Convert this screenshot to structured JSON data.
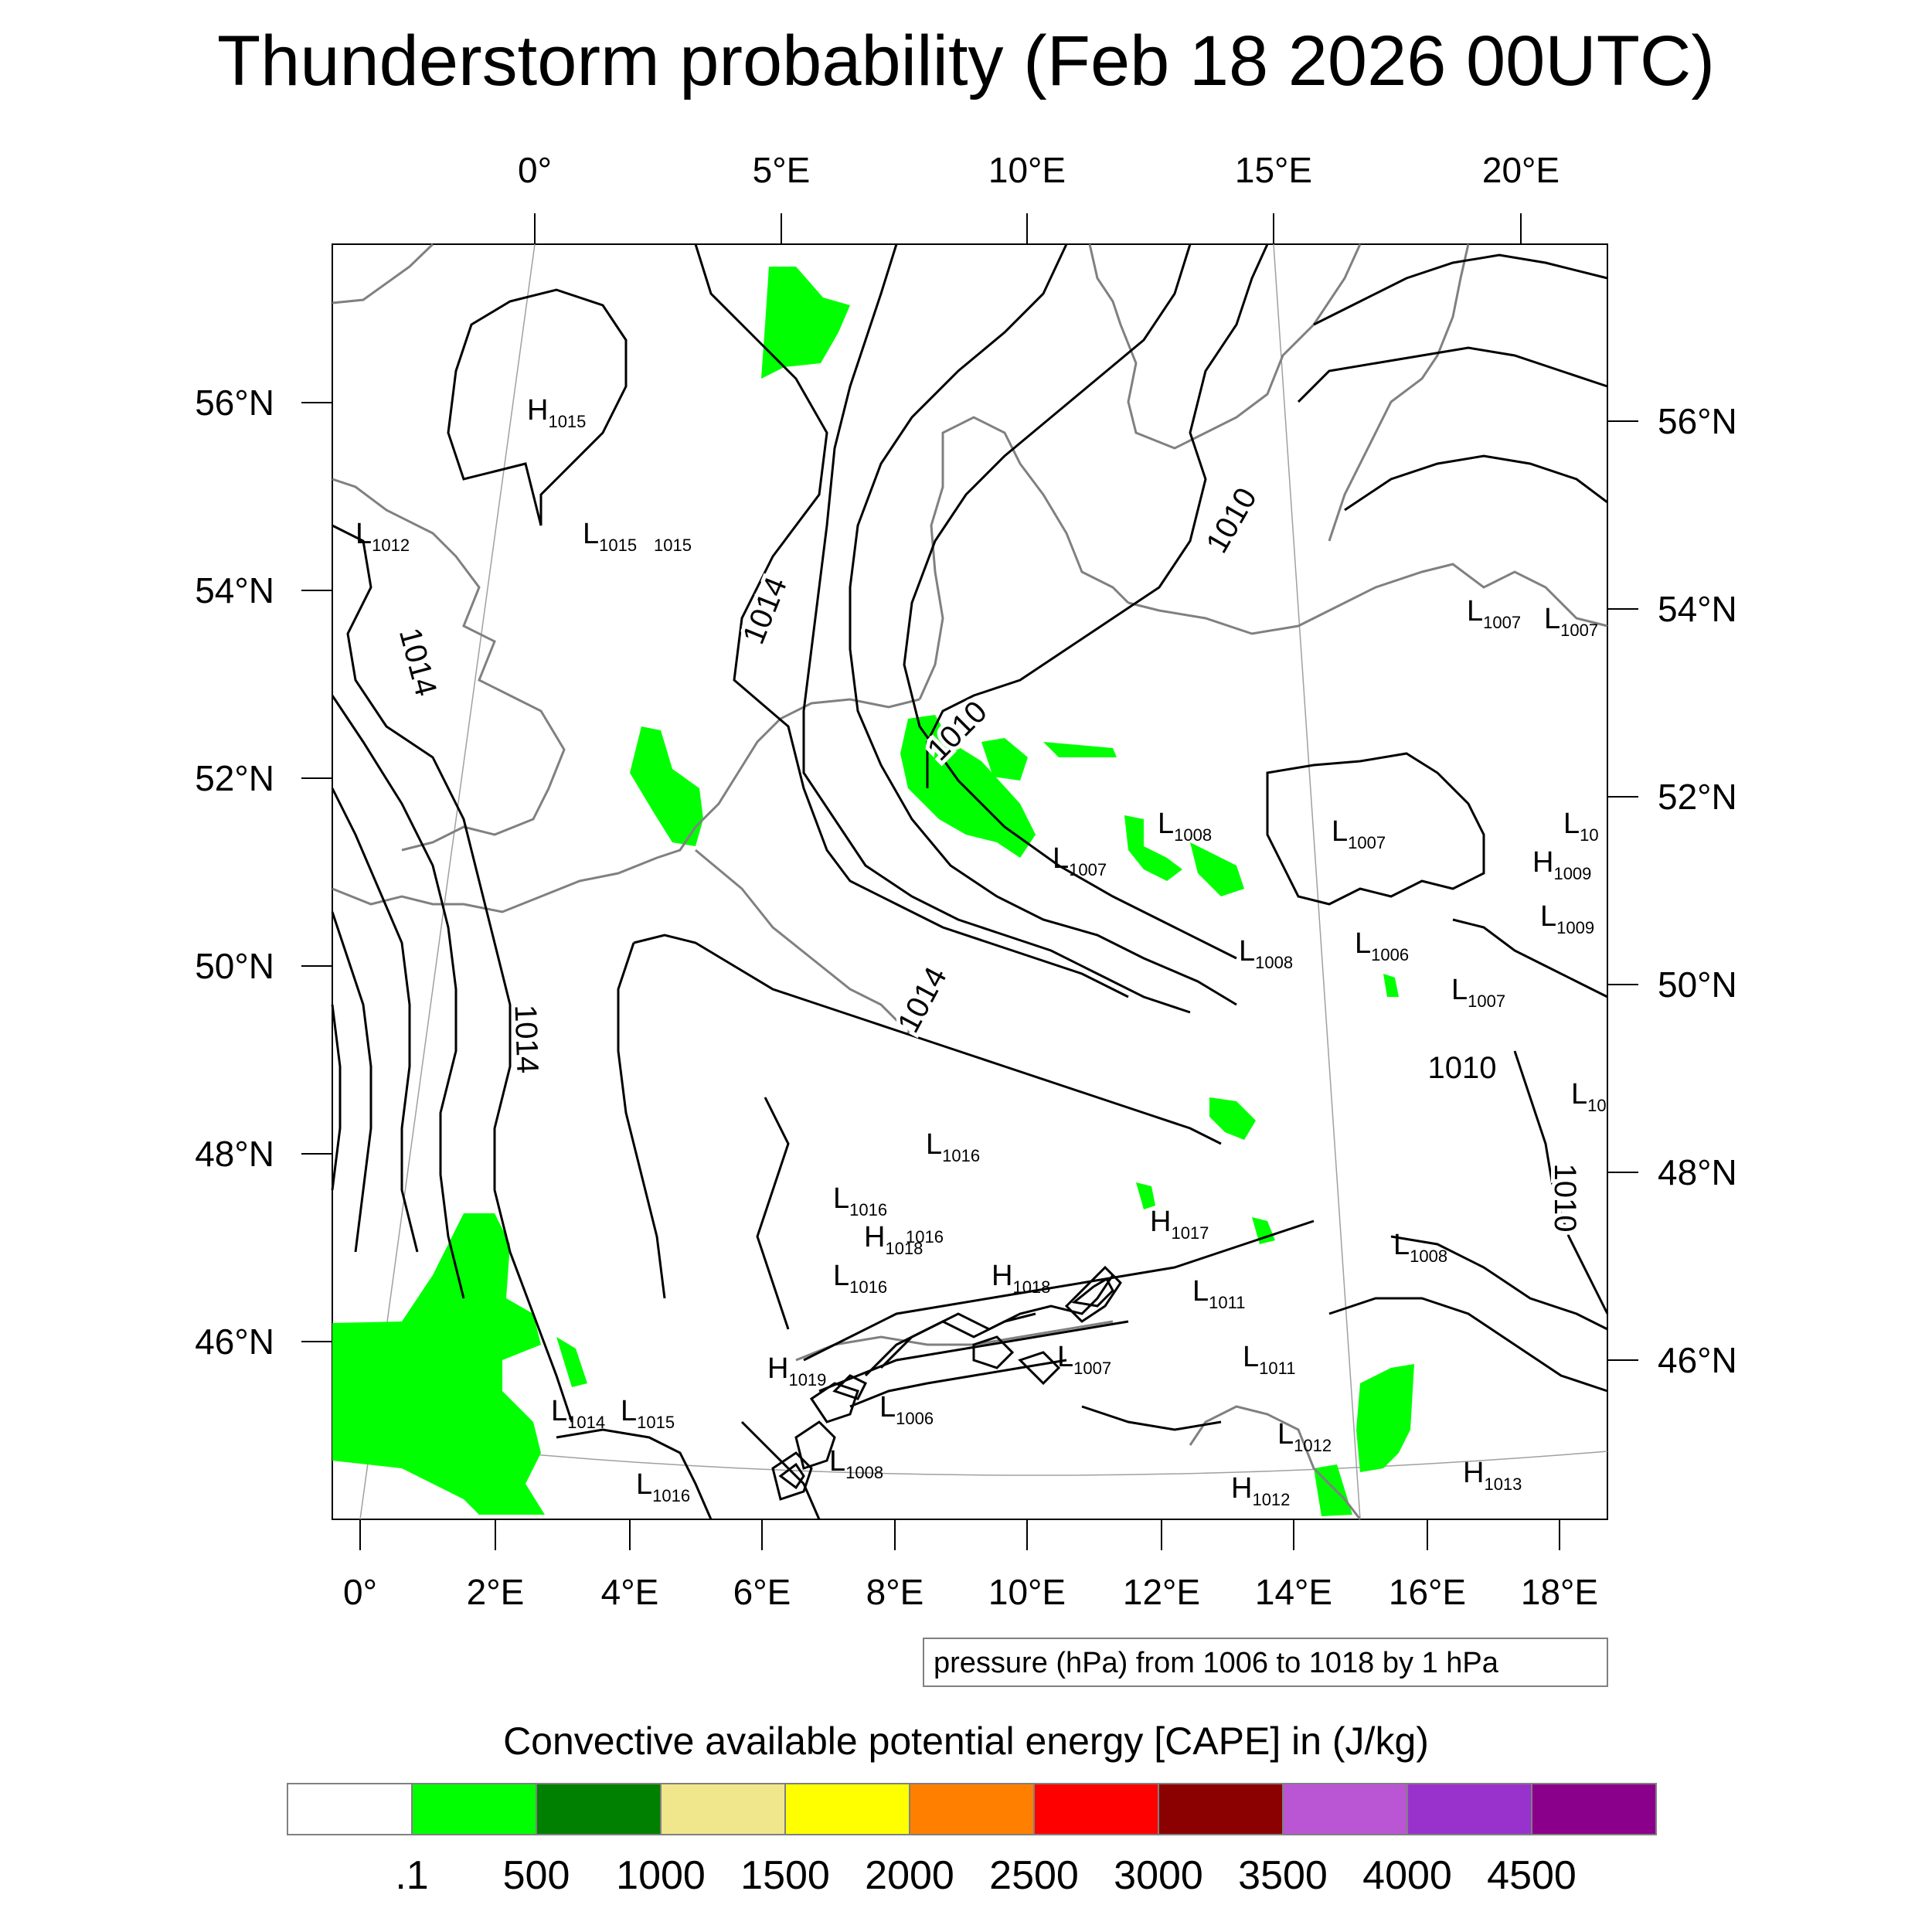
{
  "title": "Thunderstorm probability (Feb 18 2026 00UTC)",
  "top_lon_ticks": [
    "0°",
    "5°E",
    "10°E",
    "15°E",
    "20°E"
  ],
  "bottom_lon_ticks": [
    "0°",
    "2°E",
    "4°E",
    "6°E",
    "8°E",
    "10°E",
    "12°E",
    "14°E",
    "16°E",
    "18°E"
  ],
  "left_lat_ticks": [
    "56°N",
    "54°N",
    "52°N",
    "50°N",
    "48°N",
    "46°N"
  ],
  "right_lat_ticks": [
    "56°N",
    "54°N",
    "52°N",
    "50°N",
    "48°N",
    "46°N"
  ],
  "pressure_centers": [
    {
      "letter": "H",
      "value": "1015"
    },
    {
      "letter": "L",
      "value": "1012"
    },
    {
      "letter": "L",
      "value": "1015"
    },
    {
      "letter": "",
      "value": "1015"
    },
    {
      "letter": "L",
      "value": "1007"
    },
    {
      "letter": "L",
      "value": "1007"
    },
    {
      "letter": "L",
      "value": "1008"
    },
    {
      "letter": "L",
      "value": "1007"
    },
    {
      "letter": "L",
      "value": "1007"
    },
    {
      "letter": "L",
      "value": "10"
    },
    {
      "letter": "H",
      "value": "1009"
    },
    {
      "letter": "L",
      "value": "1009"
    },
    {
      "letter": "L",
      "value": "1008"
    },
    {
      "letter": "L",
      "value": "1006"
    },
    {
      "letter": "L",
      "value": "1007"
    },
    {
      "letter": "L",
      "value": "10"
    },
    {
      "letter": "L",
      "value": "1016"
    },
    {
      "letter": "L",
      "value": "1016"
    },
    {
      "letter": "H",
      "value": "1018"
    },
    {
      "letter": "",
      "value": "1016"
    },
    {
      "letter": "H",
      "value": "1017"
    },
    {
      "letter": "L",
      "value": "1008"
    },
    {
      "letter": "L",
      "value": "1016"
    },
    {
      "letter": "H",
      "value": "1018"
    },
    {
      "letter": "L",
      "value": "1011"
    },
    {
      "letter": "H",
      "value": "1019"
    },
    {
      "letter": "L",
      "value": "1007"
    },
    {
      "letter": "L",
      "value": "1011"
    },
    {
      "letter": "L",
      "value": "1014"
    },
    {
      "letter": "L",
      "value": "1015"
    },
    {
      "letter": "L",
      "value": "1006"
    },
    {
      "letter": "L",
      "value": "1012"
    },
    {
      "letter": "L",
      "value": "1008"
    },
    {
      "letter": "L",
      "value": "1016"
    },
    {
      "letter": "H",
      "value": "1012"
    },
    {
      "letter": "H",
      "value": "1013"
    }
  ],
  "contour_labels": [
    "1014",
    "1014",
    "1014",
    "1014",
    "1010",
    "1010",
    "1010",
    "1010"
  ],
  "pressure_caption": "pressure (hPa) from 1006 to 1018 by 1 hPa",
  "colorbar": {
    "title": "Convective available potential energy [CAPE] in (J/kg)",
    "colors": [
      "#ffffff",
      "#00ff00",
      "#008000",
      "#f0e68c",
      "#ffff00",
      "#ff8000",
      "#ff0000",
      "#8b0000",
      "#ba55d3",
      "#9932cc",
      "#8b008b"
    ],
    "labels": [
      ".1",
      "500",
      "1000",
      "1500",
      "2000",
      "2500",
      "3000",
      "3500",
      "4000",
      "4500"
    ]
  },
  "colors": {
    "cape_green": "#00ff00",
    "coast": "#808080",
    "isobar": "#000000"
  }
}
